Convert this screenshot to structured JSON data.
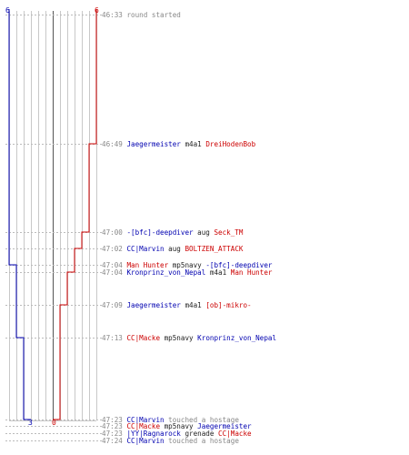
{
  "colors": {
    "team_blue": "#0000b0",
    "team_red": "#cc0000",
    "timestamp": "#888888",
    "grid": "#c8c8c8",
    "center_line": "#555555"
  },
  "scale": {
    "top_left": "6",
    "top_right": "6",
    "bottom_blue": "3",
    "bottom_red": "0"
  },
  "events": [
    {
      "time": "46:33",
      "parts": [
        {
          "text": "round started",
          "color": "timestamp"
        }
      ]
    },
    {
      "time": "46:49",
      "parts": [
        {
          "text": "Jaegermeister",
          "color": "blue"
        },
        {
          "text": " m4a1 ",
          "color": "dark"
        },
        {
          "text": "DreiHodenBob",
          "color": "red"
        }
      ]
    },
    {
      "time": "47:00",
      "parts": [
        {
          "text": "-[bfc]-deepdiver",
          "color": "blue"
        },
        {
          "text": " aug ",
          "color": "dark"
        },
        {
          "text": "Seck_TM",
          "color": "red"
        }
      ]
    },
    {
      "time": "47:02",
      "parts": [
        {
          "text": "CC|Marvin",
          "color": "blue"
        },
        {
          "text": " aug ",
          "color": "dark"
        },
        {
          "text": "BOLTZEN_ATTACK",
          "color": "red"
        }
      ]
    },
    {
      "time": "47:04",
      "parts": [
        {
          "text": "Man Hunter",
          "color": "red"
        },
        {
          "text": " mp5navy ",
          "color": "dark"
        },
        {
          "text": "-[bfc]-deepdiver",
          "color": "blue"
        }
      ]
    },
    {
      "time": "47:04",
      "parts": [
        {
          "text": "Kronprinz_von_Nepal",
          "color": "blue"
        },
        {
          "text": " m4a1 ",
          "color": "dark"
        },
        {
          "text": "Man Hunter",
          "color": "red"
        }
      ]
    },
    {
      "time": "47:09",
      "parts": [
        {
          "text": "Jaegermeister",
          "color": "blue"
        },
        {
          "text": " m4a1 ",
          "color": "dark"
        },
        {
          "text": "[ob]-mikro-",
          "color": "red"
        }
      ]
    },
    {
      "time": "47:13",
      "parts": [
        {
          "text": "CC|Macke",
          "color": "red"
        },
        {
          "text": " mp5navy ",
          "color": "dark"
        },
        {
          "text": "Kronprinz_von_Nepal",
          "color": "blue"
        }
      ]
    },
    {
      "time": "47:23",
      "parts": [
        {
          "text": "CC|Marvin",
          "color": "blue"
        },
        {
          "text": " touched a hostage",
          "color": "timestamp"
        }
      ]
    },
    {
      "time": "47:23",
      "parts": [
        {
          "text": "CC|Macke",
          "color": "red"
        },
        {
          "text": " mp5navy ",
          "color": "dark"
        },
        {
          "text": "Jaegermeister",
          "color": "blue"
        }
      ]
    },
    {
      "time": "47:23",
      "parts": [
        {
          "text": "|YY|Ragnarock",
          "color": "blue"
        },
        {
          "text": " grenade ",
          "color": "dark"
        },
        {
          "text": "CC|Macke",
          "color": "red"
        }
      ]
    },
    {
      "time": "47:24",
      "parts": [
        {
          "text": "CC|Marvin",
          "color": "blue"
        },
        {
          "text": " touched a hostage",
          "color": "timestamp"
        }
      ]
    }
  ]
}
